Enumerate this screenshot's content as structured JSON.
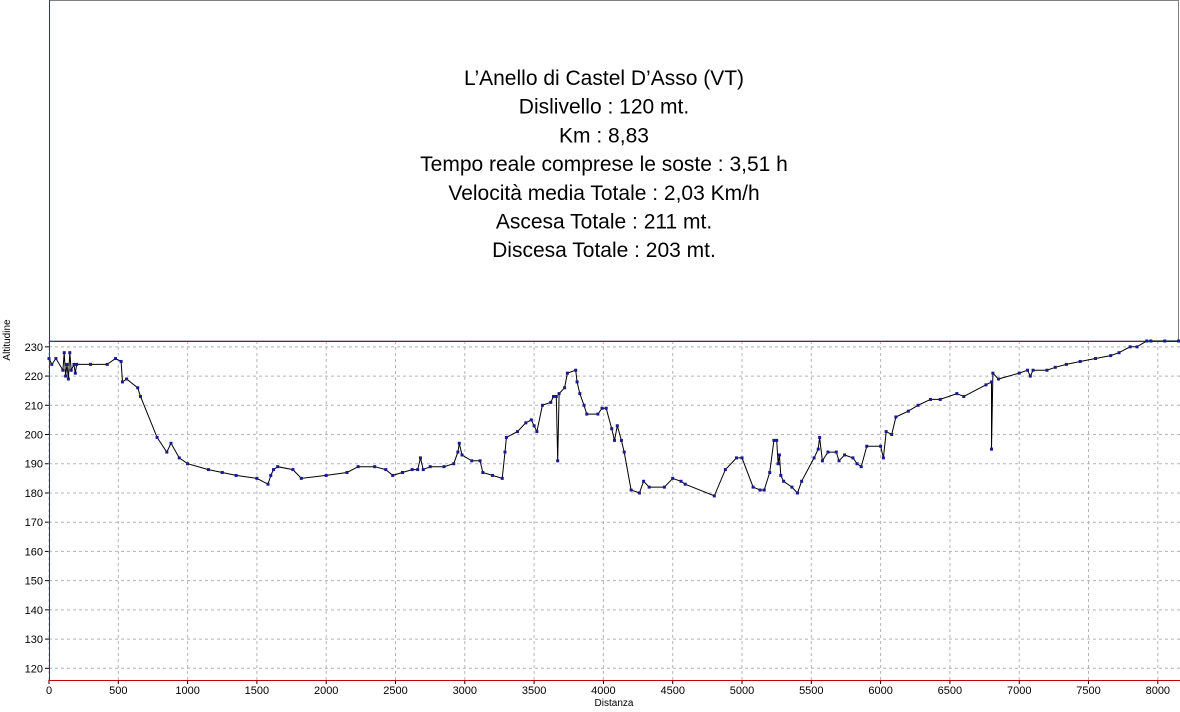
{
  "chart_data": {
    "type": "line",
    "title": [
      "L’Anello di Castel D’Asso (VT)",
      "Dislivello : 120 mt.",
      "Km : 8,83",
      "Tempo reale comprese le soste : 3,51 h",
      "Velocità media Totale : 2,03 Km/h",
      "Ascesa Totale : 211 mt.",
      "Discesa Totale : 203 mt."
    ],
    "xlabel": "Distanza",
    "ylabel": "Altitudine",
    "x": [
      0,
      20,
      50,
      100,
      110,
      120,
      130,
      140,
      150,
      160,
      180,
      190,
      200,
      300,
      420,
      480,
      520,
      530,
      560,
      640,
      660,
      780,
      850,
      880,
      940,
      1000,
      1150,
      1250,
      1350,
      1500,
      1580,
      1600,
      1620,
      1650,
      1760,
      1820,
      2000,
      2150,
      2230,
      2350,
      2430,
      2480,
      2550,
      2620,
      2660,
      2680,
      2700,
      2750,
      2850,
      2920,
      2950,
      2960,
      2980,
      3050,
      3110,
      3130,
      3200,
      3270,
      3290,
      3300,
      3380,
      3440,
      3480,
      3500,
      3520,
      3560,
      3620,
      3640,
      3660,
      3670,
      3680,
      3720,
      3740,
      3800,
      3810,
      3830,
      3860,
      3880,
      3960,
      3990,
      4020,
      4060,
      4080,
      4100,
      4130,
      4150,
      4200,
      4260,
      4290,
      4330,
      4440,
      4500,
      4560,
      4590,
      4800,
      4880,
      4960,
      5000,
      5080,
      5130,
      5160,
      5200,
      5230,
      5250,
      5260,
      5270,
      5280,
      5300,
      5360,
      5400,
      5430,
      5520,
      5550,
      5560,
      5580,
      5620,
      5680,
      5700,
      5740,
      5800,
      5830,
      5860,
      5900,
      6000,
      6020,
      6040,
      6080,
      6110,
      6200,
      6270,
      6360,
      6430,
      6550,
      6600,
      6760,
      6800,
      6800,
      6810,
      6850,
      7000,
      7060,
      7080,
      7100,
      7200,
      7260,
      7340,
      7440,
      7550,
      7660,
      7720,
      7800,
      7850,
      7920,
      7950,
      8050,
      8150
    ],
    "series": [
      {
        "name": "Altitudine",
        "color": "#000000",
        "marker_color": "#1a1a8c",
        "values": [
          226,
          224,
          226,
          222,
          228,
          220,
          224,
          219,
          228,
          222,
          224,
          221,
          224,
          224,
          224,
          226,
          225,
          218,
          219,
          216,
          213,
          199,
          194,
          197,
          192,
          190,
          188,
          187,
          186,
          185,
          183,
          186,
          188,
          189,
          188,
          185,
          186,
          187,
          189,
          189,
          188,
          186,
          187,
          188,
          188,
          192,
          188,
          189,
          189,
          190,
          194,
          197,
          193,
          191,
          191,
          187,
          186,
          185,
          194,
          199,
          201,
          204,
          205,
          203,
          201,
          210,
          211,
          213,
          213,
          191,
          214,
          216,
          221,
          222,
          218,
          214,
          210,
          207,
          207,
          209,
          209,
          202,
          198,
          203,
          198,
          194,
          181,
          180,
          184,
          182,
          182,
          185,
          184,
          183,
          179,
          188,
          192,
          192,
          182,
          181,
          181,
          187,
          198,
          198,
          190,
          193,
          186,
          184,
          182,
          180,
          184,
          192,
          195,
          199,
          191,
          194,
          194,
          191,
          193,
          192,
          190,
          189,
          196,
          196,
          192,
          201,
          200,
          206,
          208,
          210,
          212,
          212,
          214,
          213,
          217,
          218,
          195,
          221,
          219,
          221,
          222,
          220,
          222,
          222,
          223,
          224,
          225,
          226,
          227,
          228,
          230,
          230,
          232,
          232,
          232,
          232
        ]
      }
    ],
    "xlim": [
      0,
      8160
    ],
    "ylim": [
      116,
      232
    ],
    "xticks": [
      0,
      500,
      1000,
      1500,
      2000,
      2500,
      3000,
      3500,
      4000,
      4500,
      5000,
      5500,
      6000,
      6500,
      7000,
      7500,
      8000
    ],
    "yticks": [
      120,
      130,
      140,
      150,
      160,
      170,
      180,
      190,
      200,
      210,
      220,
      230
    ],
    "grid": true
  }
}
